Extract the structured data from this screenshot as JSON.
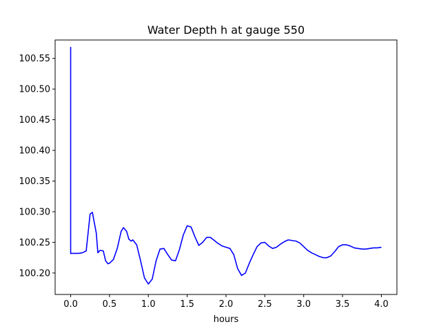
{
  "chart_data": {
    "type": "line",
    "title": "Water Depth h at gauge 550",
    "xlabel": "hours",
    "ylabel": "",
    "xlim": [
      -0.2,
      4.2
    ],
    "ylim": [
      100.165,
      100.58
    ],
    "xticks": [
      0.0,
      0.5,
      1.0,
      1.5,
      2.0,
      2.5,
      3.0,
      3.5,
      4.0
    ],
    "xtick_labels": [
      "0.0",
      "0.5",
      "1.0",
      "1.5",
      "2.0",
      "2.5",
      "3.0",
      "3.5",
      "4.0"
    ],
    "yticks": [
      100.2,
      100.25,
      100.3,
      100.35,
      100.4,
      100.45,
      100.5,
      100.55
    ],
    "ytick_labels": [
      "100.20",
      "100.25",
      "100.30",
      "100.35",
      "100.40",
      "100.45",
      "100.50",
      "100.55"
    ],
    "grid": false,
    "series": [
      {
        "color": "#0000ff",
        "x": [
          0.0,
          0.0,
          0.0,
          0.05,
          0.1,
          0.15,
          0.2,
          0.22,
          0.25,
          0.28,
          0.3,
          0.33,
          0.35,
          0.38,
          0.42,
          0.45,
          0.48,
          0.5,
          0.55,
          0.6,
          0.65,
          0.68,
          0.72,
          0.75,
          0.78,
          0.8,
          0.85,
          0.9,
          0.95,
          1.0,
          1.05,
          1.1,
          1.15,
          1.2,
          1.25,
          1.3,
          1.35,
          1.4,
          1.45,
          1.5,
          1.55,
          1.6,
          1.65,
          1.7,
          1.75,
          1.8,
          1.85,
          1.9,
          1.95,
          2.0,
          2.05,
          2.1,
          2.15,
          2.2,
          2.25,
          2.3,
          2.35,
          2.4,
          2.45,
          2.5,
          2.55,
          2.6,
          2.65,
          2.7,
          2.75,
          2.8,
          2.85,
          2.9,
          2.95,
          3.0,
          3.05,
          3.1,
          3.15,
          3.2,
          3.25,
          3.3,
          3.35,
          3.4,
          3.45,
          3.5,
          3.55,
          3.6,
          3.65,
          3.7,
          3.75,
          3.8,
          3.85,
          3.9,
          3.95,
          4.0
        ],
        "y": [
          100.231,
          100.568,
          100.232,
          100.232,
          100.232,
          100.233,
          100.236,
          100.26,
          100.296,
          100.299,
          100.285,
          100.265,
          100.233,
          100.237,
          100.236,
          100.22,
          100.215,
          100.216,
          100.222,
          100.24,
          100.268,
          100.274,
          100.268,
          100.255,
          100.252,
          100.254,
          100.246,
          100.22,
          100.192,
          100.182,
          100.19,
          100.22,
          100.239,
          100.24,
          100.23,
          100.221,
          100.22,
          100.238,
          100.262,
          100.277,
          100.275,
          100.259,
          100.245,
          100.25,
          100.258,
          100.258,
          100.253,
          100.248,
          100.244,
          100.242,
          100.24,
          100.23,
          100.207,
          100.196,
          100.2,
          100.216,
          100.23,
          100.243,
          100.249,
          100.25,
          100.244,
          100.24,
          100.242,
          100.247,
          100.251,
          100.254,
          100.253,
          100.252,
          100.249,
          100.243,
          100.237,
          100.233,
          100.23,
          100.227,
          100.225,
          100.225,
          100.228,
          100.235,
          100.243,
          100.246,
          100.246,
          100.244,
          100.241,
          100.24,
          100.239,
          100.239,
          100.24,
          100.241,
          100.241,
          100.242
        ]
      }
    ]
  }
}
